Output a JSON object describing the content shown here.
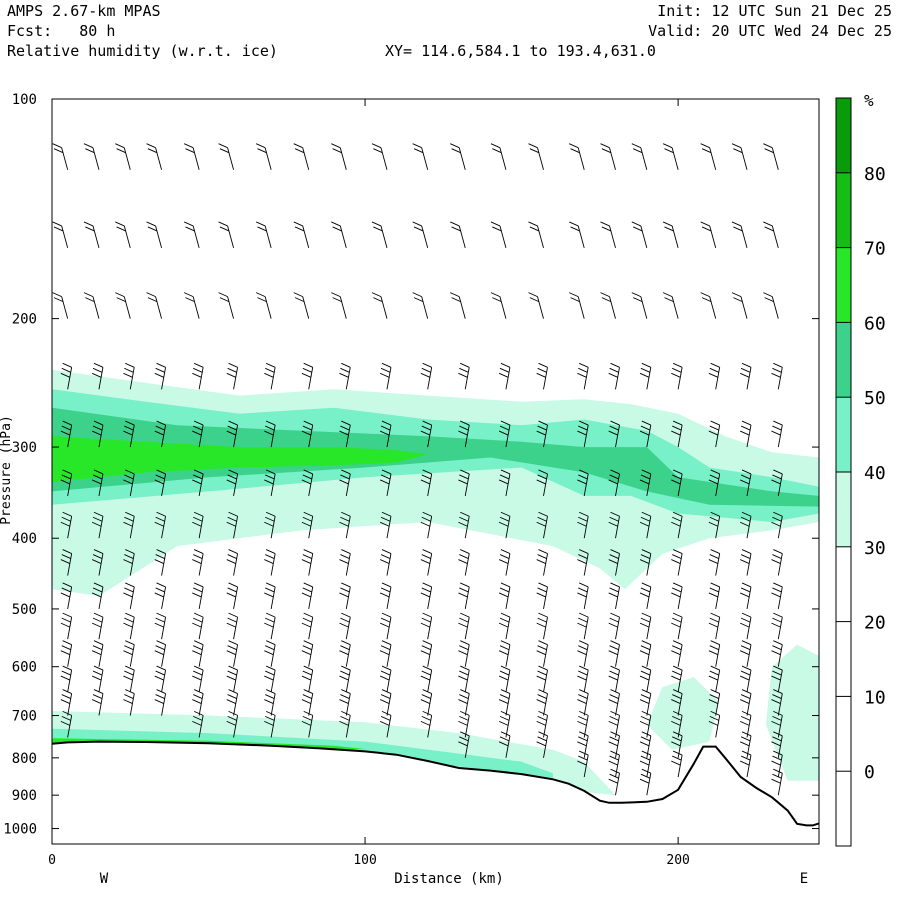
{
  "header": {
    "model": "AMPS 2.67-km MPAS",
    "forecast": "Fcst:   80 h",
    "field": "Relative humidity (w.r.t. ice)",
    "xy_range": "XY= 114.6,584.1 to 193.4,631.0",
    "init": "Init: 12 UTC Sun 21 Dec 25",
    "valid": "Valid: 20 UTC Wed 24 Dec 25"
  },
  "chart_data": {
    "type": "cross-section",
    "title": "Relative humidity (w.r.t. ice)",
    "xlabel": "Distance (km)",
    "ylabel": "Pressure (hPa)",
    "xlim": [
      0,
      245
    ],
    "ylim": [
      100,
      1050
    ],
    "y_scale": "log-pressure",
    "x_ticks": [
      0,
      100,
      200
    ],
    "y_ticks": [
      100,
      200,
      300,
      400,
      500,
      600,
      700,
      800,
      900,
      1000
    ],
    "x_end_labels": {
      "left": "W",
      "right": "E"
    },
    "colorbar": {
      "unit": "%",
      "levels": [
        0,
        10,
        20,
        30,
        40,
        50,
        60,
        70,
        80
      ],
      "colors": [
        "#ffffff",
        "#ffffff",
        "#ffffff",
        "#ffffff",
        "#c8fae6",
        "#78f0c8",
        "#3cd28c",
        "#28e628",
        "#14be14",
        "#0a9b0a"
      ]
    },
    "terrain_pressure": {
      "x": [
        0,
        5,
        15,
        30,
        50,
        70,
        85,
        100,
        110,
        120,
        130,
        140,
        150,
        160,
        165,
        170,
        175,
        178,
        182,
        190,
        195,
        200,
        205,
        208,
        212,
        215,
        220,
        225,
        230,
        235,
        238,
        241,
        243,
        245
      ],
      "p": [
        765,
        762,
        760,
        761,
        764,
        770,
        776,
        784,
        792,
        808,
        826,
        833,
        842,
        856,
        868,
        888,
        916,
        922,
        922,
        919,
        911,
        885,
        815,
        772,
        772,
        800,
        850,
        880,
        906,
        945,
        985,
        990,
        990,
        984
      ]
    },
    "rh_regions": [
      {
        "level": "30-40",
        "color": "#c8fae6",
        "x": [
          0,
          30,
          60,
          90,
          120,
          150,
          170,
          185,
          200,
          215,
          230,
          245,
          245,
          230,
          210,
          195,
          183,
          175,
          160,
          120,
          80,
          40,
          15,
          0
        ],
        "p": [
          235,
          245,
          255,
          250,
          255,
          260,
          258,
          262,
          270,
          290,
          305,
          310,
          380,
          390,
          400,
          420,
          470,
          440,
          410,
          380,
          390,
          410,
          480,
          470
        ]
      },
      {
        "level": "40-50",
        "color": "#78f0c8",
        "x": [
          0,
          30,
          60,
          90,
          120,
          150,
          170,
          190,
          200,
          210,
          230,
          245,
          245,
          230,
          200,
          185,
          170,
          150,
          100,
          50,
          0
        ],
        "p": [
          250,
          260,
          270,
          265,
          275,
          280,
          275,
          285,
          300,
          320,
          330,
          340,
          370,
          380,
          370,
          350,
          350,
          320,
          330,
          345,
          360
        ]
      },
      {
        "level": "50-60",
        "color": "#3cd28c",
        "x": [
          0,
          40,
          80,
          120,
          150,
          170,
          190,
          200,
          230,
          245,
          245,
          210,
          190,
          170,
          140,
          100,
          50,
          0
        ],
        "p": [
          265,
          280,
          285,
          290,
          295,
          300,
          300,
          330,
          345,
          350,
          362,
          360,
          345,
          325,
          310,
          320,
          330,
          345
        ]
      },
      {
        "level": "60-70",
        "color": "#28e628",
        "x": [
          0,
          30,
          60,
          90,
          110,
          120,
          110,
          90,
          60,
          30,
          0
        ],
        "p": [
          290,
          295,
          300,
          300,
          303,
          307,
          315,
          318,
          320,
          325,
          335
        ]
      },
      {
        "level": "30-40 (low-level)",
        "color": "#c8fae6",
        "x": [
          0,
          50,
          100,
          130,
          160,
          170,
          180,
          0
        ],
        "p": [
          690,
          700,
          715,
          740,
          780,
          810,
          900,
          740
        ]
      },
      {
        "level": "30-40 (east low-level)",
        "color": "#c8fae6",
        "x": [
          230,
          238,
          245,
          245,
          235,
          228
        ],
        "p": [
          600,
          560,
          580,
          860,
          860,
          720
        ]
      },
      {
        "level": "30-40 (ridge)",
        "color": "#c8fae6",
        "x": [
          195,
          205,
          213,
          210,
          198,
          190
        ],
        "p": [
          640,
          620,
          670,
          760,
          780,
          720
        ]
      },
      {
        "level": "40-50 (surface band)",
        "color": "#78f0c8",
        "x": [
          0,
          50,
          100,
          150,
          160,
          160,
          100,
          50,
          0
        ],
        "p": [
          730,
          740,
          760,
          810,
          840,
          855,
          790,
          765,
          765
        ]
      },
      {
        "level": "60-70 (surface band)",
        "color": "#28e628",
        "x": [
          0,
          50,
          90,
          100,
          90,
          50,
          0
        ],
        "p": [
          752,
          758,
          770,
          778,
          780,
          767,
          764
        ]
      }
    ],
    "wind_barbs": {
      "columns_x": [
        5,
        15,
        25,
        35,
        47,
        58,
        70,
        82,
        94,
        107,
        120,
        132,
        145,
        157,
        170,
        180,
        190,
        200,
        212,
        222,
        232
      ],
      "levels_p": [
        125,
        160,
        200,
        250,
        300,
        350,
        400,
        450,
        500,
        550,
        600,
        650,
        700,
        750,
        800,
        850,
        900
      ]
    }
  }
}
